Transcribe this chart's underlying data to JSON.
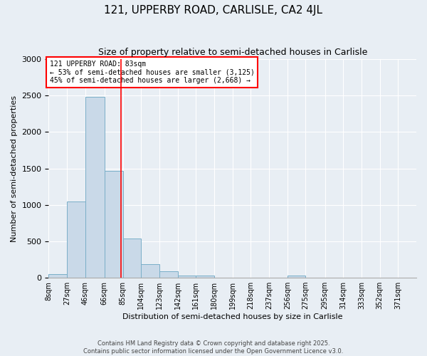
{
  "title": "121, UPPERBY ROAD, CARLISLE, CA2 4JL",
  "subtitle": "Size of property relative to semi-detached houses in Carlisle",
  "xlabel": "Distribution of semi-detached houses by size in Carlisle",
  "ylabel": "Number of semi-detached properties",
  "bin_edges": [
    8,
    27,
    46,
    66,
    85,
    104,
    123,
    142,
    161,
    180,
    199,
    218,
    237,
    256,
    275,
    295,
    314,
    333,
    352,
    371,
    390
  ],
  "bar_heights": [
    50,
    1050,
    2480,
    1470,
    540,
    190,
    85,
    35,
    30,
    0,
    0,
    0,
    0,
    35,
    0,
    0,
    0,
    0,
    0,
    0
  ],
  "bar_color": "#c9d9e8",
  "bar_edgecolor": "#7aafc8",
  "property_size": 83,
  "vline_color": "red",
  "annotation_text": "121 UPPERBY ROAD: 83sqm\n← 53% of semi-detached houses are smaller (3,125)\n45% of semi-detached houses are larger (2,668) →",
  "annotation_box_color": "white",
  "annotation_box_edgecolor": "red",
  "ylim": [
    0,
    3000
  ],
  "background_color": "#e8eef4",
  "footer_line1": "Contains HM Land Registry data © Crown copyright and database right 2025.",
  "footer_line2": "Contains public sector information licensed under the Open Government Licence v3.0.",
  "title_fontsize": 11,
  "subtitle_fontsize": 9,
  "tick_label_fontsize": 7,
  "ylabel_fontsize": 8,
  "xlabel_fontsize": 8
}
